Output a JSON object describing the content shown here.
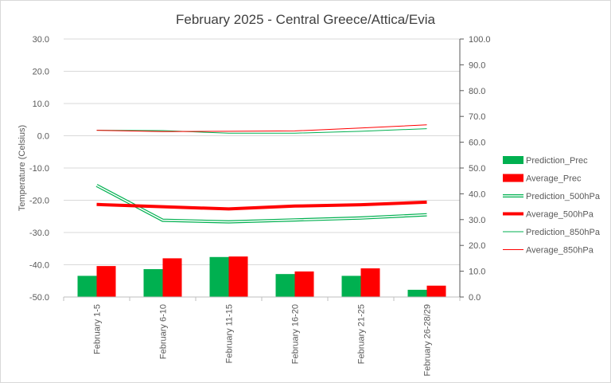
{
  "chart_data": {
    "type": "bar+line",
    "title": "February 2025 - Central Greece/Attica/Evia",
    "ylabel": "Temperature (Celsius)",
    "y_left_lim": [
      -50,
      30
    ],
    "y_left_ticks": [
      "30.0",
      "20.0",
      "10.0",
      "0.0",
      "-10.0",
      "-20.0",
      "-30.0",
      "-40.0",
      "-50.0"
    ],
    "y_right_lim": [
      0,
      100
    ],
    "y_right_ticks": [
      "100.0",
      "90.0",
      "80.0",
      "70.0",
      "60.0",
      "50.0",
      "40.0",
      "30.0",
      "20.0",
      "10.0",
      "0.0"
    ],
    "categories": [
      "February 1-5",
      "February 6-10",
      "February 11-15",
      "February 16-20",
      "February 21-25",
      "February 26-28/29"
    ],
    "bar_series": [
      {
        "name": "Prediction_Prec",
        "color": "#00b050",
        "axis": "right",
        "values": [
          8.2,
          10.8,
          15.5,
          8.9,
          8.2,
          2.8
        ]
      },
      {
        "name": "Average_Prec",
        "color": "#ff0000",
        "axis": "right",
        "values": [
          12.0,
          15.0,
          15.7,
          9.9,
          11.1,
          4.4
        ]
      }
    ],
    "line_series": [
      {
        "name": "Prediction_500hPa",
        "color": "#00b050",
        "style": "double",
        "axis": "left",
        "values": [
          -15.4,
          -26.2,
          -26.7,
          -26.1,
          -25.5,
          -24.5
        ]
      },
      {
        "name": "Average_500hPa",
        "color": "#ff0000",
        "style": "thick",
        "axis": "left",
        "values": [
          -21.3,
          -22.0,
          -22.7,
          -21.8,
          -21.4,
          -20.6
        ]
      },
      {
        "name": "Prediction_850hPa",
        "color": "#00b050",
        "style": "thin",
        "axis": "left",
        "values": [
          1.7,
          1.6,
          0.8,
          0.8,
          1.4,
          2.2
        ]
      },
      {
        "name": "Average_850hPa",
        "color": "#ff0000",
        "style": "thin",
        "axis": "left",
        "values": [
          1.7,
          1.3,
          1.4,
          1.5,
          2.4,
          3.4
        ]
      }
    ]
  }
}
